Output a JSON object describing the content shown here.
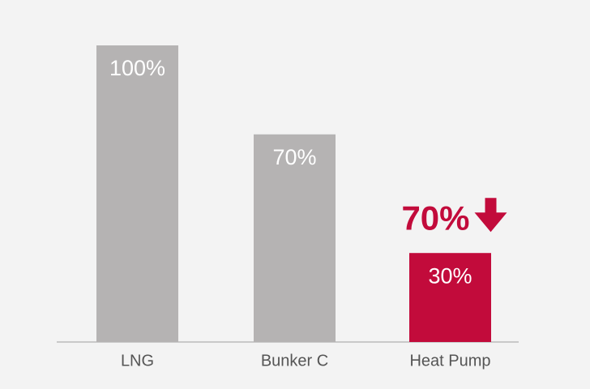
{
  "chart_data": {
    "type": "bar",
    "categories": [
      "LNG",
      "Bunker C",
      "Heat Pump"
    ],
    "values": [
      100,
      70,
      30
    ],
    "value_labels": [
      "100%",
      "70%",
      "30%"
    ],
    "colors": [
      "#b5b3b3",
      "#b5b3b3",
      "#c20b3b"
    ],
    "annotation": "70%",
    "annotation_color": "#c20b3b"
  }
}
